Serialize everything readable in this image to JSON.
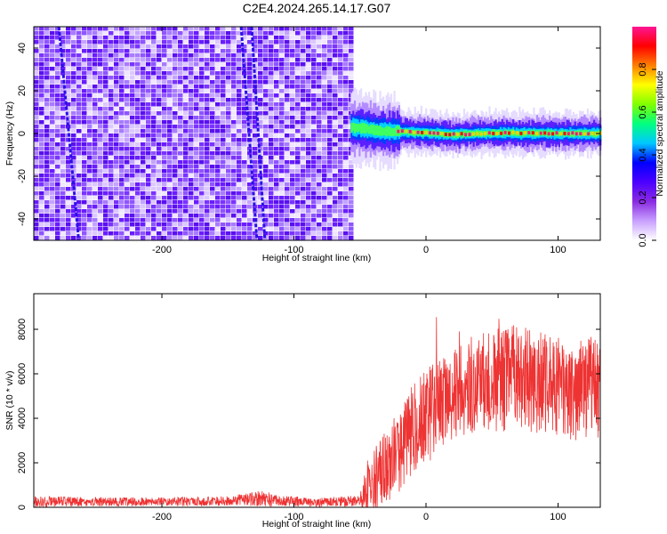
{
  "title": "C2E4.2024.265.14.17.G07",
  "chart_data": [
    {
      "type": "heatmap",
      "xlabel": "Height of straight line (km)",
      "ylabel": "Frequency (Hz)",
      "xlim": [
        -297,
        132
      ],
      "ylim": [
        -50,
        50
      ],
      "x_ticks": [
        -200,
        -100,
        0,
        100
      ],
      "x_tick_labels": [
        "-200",
        "-100",
        "0",
        "100"
      ],
      "y_ticks": [
        -40,
        -20,
        0,
        20,
        40
      ],
      "y_tick_labels": [
        "-40",
        "-20",
        "0",
        "20",
        "40"
      ],
      "noise_region_x": [
        -297,
        -57
      ],
      "signal_track": [
        {
          "x": -57,
          "y": 3
        },
        {
          "x": -50,
          "y": 2.5
        },
        {
          "x": -40,
          "y": 1.5
        },
        {
          "x": -30,
          "y": 1
        },
        {
          "x": -20,
          "y": 1
        },
        {
          "x": -10,
          "y": 0.5
        },
        {
          "x": 0,
          "y": 0.3
        },
        {
          "x": 20,
          "y": -0.5
        },
        {
          "x": 40,
          "y": 0
        },
        {
          "x": 60,
          "y": 0.3
        },
        {
          "x": 80,
          "y": 0
        },
        {
          "x": 100,
          "y": 0
        },
        {
          "x": 132,
          "y": 0
        }
      ],
      "streaks": [
        {
          "x_top": -278,
          "x_bottom": -263
        },
        {
          "x_top": -140,
          "x_bottom": -128
        },
        {
          "x_top": -132,
          "x_bottom": -122
        }
      ],
      "colorbar": {
        "label": "Normalized spectral amplitude",
        "range": [
          0,
          1
        ],
        "ticks": [
          0.0,
          0.2,
          0.4,
          0.6,
          0.8
        ],
        "tick_labels": [
          "0.0",
          "0.2",
          "0.4",
          "0.6",
          "0.8"
        ],
        "colors": [
          "#ffffff",
          "#c8a0ff",
          "#8a2be2",
          "#4b00ff",
          "#0000ff",
          "#00c8ff",
          "#00ff80",
          "#80ff00",
          "#ffff00",
          "#ff8000",
          "#ff0000",
          "#ff1493"
        ]
      }
    },
    {
      "type": "line",
      "xlabel": "Height of straight line (km)",
      "ylabel": "SNR (10 * v/v)",
      "xlim": [
        -297,
        132
      ],
      "ylim": [
        0,
        9600
      ],
      "x_ticks": [
        -200,
        -100,
        0,
        100
      ],
      "x_tick_labels": [
        "-200",
        "-100",
        "0",
        "100"
      ],
      "y_ticks": [
        0,
        2000,
        4000,
        6000,
        8000
      ],
      "y_tick_labels": [
        "0",
        "2000",
        "4000",
        "6000",
        "8000"
      ],
      "color": "#ee3333",
      "envelope": [
        {
          "x": -297,
          "mean": 250,
          "spread": 250
        },
        {
          "x": -250,
          "mean": 250,
          "spread": 200
        },
        {
          "x": -200,
          "mean": 250,
          "spread": 200
        },
        {
          "x": -150,
          "mean": 280,
          "spread": 220
        },
        {
          "x": -125,
          "mean": 400,
          "spread": 350
        },
        {
          "x": -110,
          "mean": 300,
          "spread": 250
        },
        {
          "x": -80,
          "mean": 220,
          "spread": 200
        },
        {
          "x": -50,
          "mean": 300,
          "spread": 250
        },
        {
          "x": -45,
          "mean": 900,
          "spread": 1200
        },
        {
          "x": -35,
          "mean": 1500,
          "spread": 1500
        },
        {
          "x": -25,
          "mean": 2200,
          "spread": 1800
        },
        {
          "x": -15,
          "mean": 3000,
          "spread": 2000
        },
        {
          "x": -5,
          "mean": 3800,
          "spread": 2200
        },
        {
          "x": 5,
          "mean": 4300,
          "spread": 2200
        },
        {
          "x": 20,
          "mean": 5000,
          "spread": 2000
        },
        {
          "x": 40,
          "mean": 5600,
          "spread": 2200
        },
        {
          "x": 55,
          "mean": 6000,
          "spread": 2600
        },
        {
          "x": 70,
          "mean": 5800,
          "spread": 2400
        },
        {
          "x": 90,
          "mean": 5500,
          "spread": 2400
        },
        {
          "x": 110,
          "mean": 5200,
          "spread": 2200
        },
        {
          "x": 132,
          "mean": 5400,
          "spread": 2400
        }
      ]
    }
  ]
}
